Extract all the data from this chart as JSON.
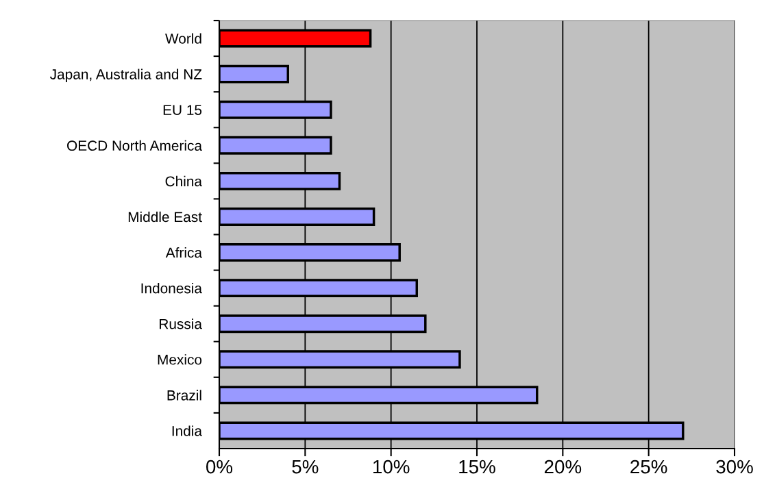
{
  "chart_data": {
    "type": "bar",
    "orientation": "horizontal",
    "categories": [
      "World",
      "Japan, Australia and NZ",
      "EU 15",
      "OECD North America",
      "China",
      "Middle East",
      "Africa",
      "Indonesia",
      "Russia",
      "Mexico",
      "Brazil",
      "India"
    ],
    "values": [
      8.8,
      4.0,
      6.5,
      6.5,
      7.0,
      9.0,
      10.5,
      11.5,
      12.0,
      14.0,
      18.5,
      27.0
    ],
    "colors": [
      "#ff0000",
      "#9999ff",
      "#9999ff",
      "#9999ff",
      "#9999ff",
      "#9999ff",
      "#9999ff",
      "#9999ff",
      "#9999ff",
      "#9999ff",
      "#9999ff",
      "#9999ff"
    ],
    "xlim": [
      0,
      30
    ],
    "xticks": [
      {
        "value": 0,
        "label": "0%"
      },
      {
        "value": 5,
        "label": "5%"
      },
      {
        "value": 10,
        "label": "10%"
      },
      {
        "value": 15,
        "label": "15%"
      },
      {
        "value": 20,
        "label": "20%"
      },
      {
        "value": 25,
        "label": "25%"
      },
      {
        "value": 30,
        "label": "30%"
      }
    ],
    "grid": "x"
  }
}
